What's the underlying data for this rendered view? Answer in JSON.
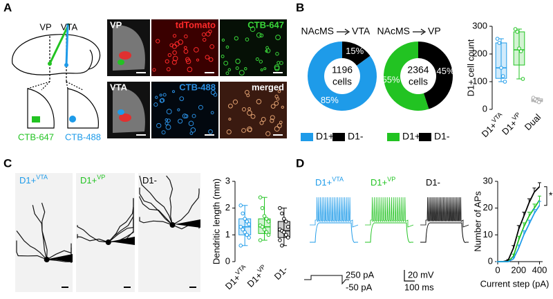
{
  "panel_labels": [
    "A",
    "B",
    "C",
    "D"
  ],
  "panel_a": {
    "schematic_labels": [
      "VP",
      "VTA"
    ],
    "tracer_labels": [
      "CTB-647",
      "CTB-488"
    ],
    "image_labels": [
      "VP",
      "tdTomato",
      "CTB-647",
      "VTA",
      "CTB-488",
      "merged"
    ]
  },
  "panel_c": {
    "image_labels": [
      {
        "base": "D1+",
        "sup": "VTA"
      },
      {
        "base": "D1+",
        "sup": "VP"
      },
      {
        "base": "D1-"
      }
    ]
  },
  "panel_d": {
    "trace_labels": [
      {
        "base": "D1+",
        "sup": "VTA"
      },
      {
        "base": "D1+",
        "sup": "VP"
      },
      {
        "base": "D1-"
      }
    ],
    "scale_labels": [
      "250 pA",
      "-50 pA",
      "20 mV",
      "100 ms"
    ]
  },
  "chart_data": [
    {
      "type": "pie",
      "title_source": "NAcMS",
      "title_target": "VTA",
      "categories": [
        "D1+",
        "D1-"
      ],
      "values": [
        85,
        15
      ],
      "value_labels": [
        "85%",
        "15%"
      ],
      "colors": [
        "#1e9be9",
        "#000000"
      ],
      "center_count": 1196,
      "center_unit": "cells"
    },
    {
      "type": "pie",
      "title_source": "NAcMS",
      "title_target": "VP",
      "categories": [
        "D1+",
        "D1-"
      ],
      "values": [
        55,
        45
      ],
      "value_labels": [
        "55%",
        "45%"
      ],
      "colors": [
        "#22c322",
        "#000000"
      ],
      "center_count": 2364,
      "center_unit": "cells"
    },
    {
      "type": "box",
      "ylabel": "D1+ cell count",
      "categories": [
        {
          "base": "D1+",
          "sup": "VTA"
        },
        {
          "base": "D1+",
          "sup": "VP"
        },
        {
          "base": "Dual"
        }
      ],
      "colors": [
        "#1e9be9",
        "#22c322",
        "#aaaaaa"
      ],
      "boxes": [
        {
          "min": 100,
          "q1": 112,
          "median": 150,
          "q3": 240,
          "max": 255,
          "points": [
            255,
            240,
            150,
            120,
            100
          ]
        },
        {
          "min": 110,
          "q1": 160,
          "median": 215,
          "q3": 280,
          "max": 290,
          "points": [
            290,
            280,
            220,
            210,
            110
          ]
        },
        {
          "min": 26,
          "q1": 28,
          "median": 32,
          "q3": 38,
          "max": 42,
          "points": [
            42,
            36,
            30,
            26
          ]
        }
      ],
      "ylim": [
        0,
        300
      ],
      "yticks": [
        0,
        100,
        200,
        300
      ]
    },
    {
      "type": "box",
      "ylabel": "Dendritic length (mm)",
      "categories": [
        {
          "base": "D1+",
          "sup": "VTA"
        },
        {
          "base": "D1+",
          "sup": "VP"
        },
        {
          "base": "D1-"
        }
      ],
      "colors": [
        "#1e9be9",
        "#22c322",
        "#000000"
      ],
      "boxes": [
        {
          "min": 0.6,
          "q1": 1.0,
          "median": 1.3,
          "q3": 1.6,
          "max": 2.1,
          "points": [
            2.1,
            1.8,
            1.6,
            1.5,
            1.4,
            1.3,
            1.2,
            1.1,
            1.0,
            0.9,
            0.6
          ]
        },
        {
          "min": 0.8,
          "q1": 1.05,
          "median": 1.3,
          "q3": 1.6,
          "max": 2.4,
          "points": [
            2.4,
            2.0,
            1.7,
            1.6,
            1.5,
            1.35,
            1.3,
            1.2,
            1.1,
            1.0,
            0.8
          ]
        },
        {
          "min": 0.6,
          "q1": 0.9,
          "median": 1.15,
          "q3": 1.5,
          "max": 2.0,
          "points": [
            2.0,
            1.8,
            1.6,
            1.5,
            1.3,
            1.2,
            1.15,
            1.1,
            1.0,
            0.9,
            0.8,
            0.6
          ]
        }
      ],
      "ylim": [
        0,
        3
      ],
      "yticks": [
        0,
        1,
        2,
        3
      ]
    },
    {
      "type": "line",
      "xlabel": "Current step (pA)",
      "ylabel": "Number of APs",
      "x": [
        0,
        50,
        100,
        150,
        200,
        250,
        300,
        350,
        400
      ],
      "series": [
        {
          "color": "#000000",
          "values": [
            0,
            0,
            0.5,
            5,
            12,
            17,
            22,
            26,
            28
          ],
          "errors": [
            0,
            0,
            0.3,
            1,
            1.5,
            1.5,
            1.5,
            1.5,
            1.5
          ]
        },
        {
          "color": "#22c322",
          "values": [
            0,
            0,
            0,
            2,
            8,
            13,
            17,
            20,
            23
          ],
          "errors": [
            0,
            0,
            0,
            0.8,
            1.5,
            1.5,
            1.5,
            1.5,
            1.5
          ]
        },
        {
          "color": "#1e9be9",
          "values": [
            0,
            0,
            0,
            1,
            5,
            10,
            14,
            18,
            21
          ],
          "errors": [
            0,
            0,
            0,
            0.5,
            1.2,
            1.5,
            1.5,
            1.5,
            1.5
          ]
        }
      ],
      "annotation": "*",
      "xlim": [
        0,
        430
      ],
      "xticks": [
        0,
        200,
        400
      ],
      "ylim": [
        0,
        30
      ],
      "yticks": [
        0,
        10,
        20,
        30
      ]
    }
  ]
}
